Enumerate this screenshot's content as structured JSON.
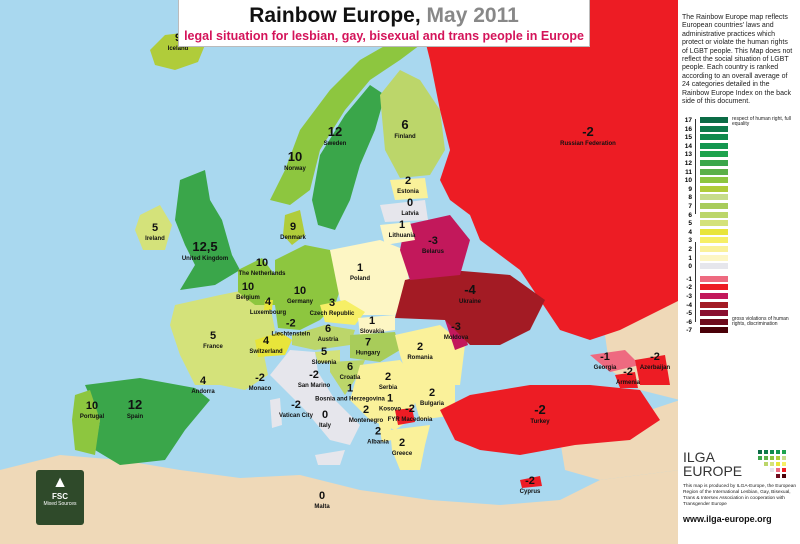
{
  "header": {
    "title": "Rainbow Europe",
    "date": "May 2011",
    "subtitle": "legal situation for lesbian, gay, bisexual and trans people in Europe"
  },
  "description": "The Rainbow Europe map reflects European countries' laws and administrative practices which protect or violate the human rights of LGBT people. This Map does not reflect the social situation of LGBT people. Each country is ranked according to an overall average of 24 categories detailed in the Rainbow Europe Index on the back side of this document.",
  "legend": {
    "top_note": "respect of human right, full equality",
    "bottom_note": "gross violations of human rights, discrimination",
    "scale": [
      {
        "v": "17",
        "c": "#0b6b45"
      },
      {
        "v": "16",
        "c": "#0d7a4a"
      },
      {
        "v": "15",
        "c": "#108a4d"
      },
      {
        "v": "14",
        "c": "#14964f"
      },
      {
        "v": "13",
        "c": "#1ea34d"
      },
      {
        "v": "12",
        "c": "#3aa64a"
      },
      {
        "v": "11",
        "c": "#5bb047"
      },
      {
        "v": "10",
        "c": "#8dc63f"
      },
      {
        "v": "9",
        "c": "#b0cc3a"
      },
      {
        "v": "8",
        "c": "#c7dc8a"
      },
      {
        "v": "7",
        "c": "#a8cc5a"
      },
      {
        "v": "6",
        "c": "#bcd66a"
      },
      {
        "v": "5",
        "c": "#d4e27a"
      },
      {
        "v": "4",
        "c": "#e8e53a"
      },
      {
        "v": "3",
        "c": "#f6ef66"
      },
      {
        "v": "2",
        "c": "#faf19a"
      },
      {
        "v": "1",
        "c": "#fdf6c4"
      },
      {
        "v": "0",
        "c": "#e6e6ec"
      },
      {
        "v": "-1",
        "c": "#ee6a80"
      },
      {
        "v": "-2",
        "c": "#ed1c24"
      },
      {
        "v": "-3",
        "c": "#c2185b"
      },
      {
        "v": "-4",
        "c": "#a31b24"
      },
      {
        "v": "-5",
        "c": "#8a0f30"
      },
      {
        "v": "-6",
        "c": "#6e0a1c"
      },
      {
        "v": "-7",
        "c": "#4a0008"
      }
    ]
  },
  "colors": {
    "sea": "#a9d8ef",
    "non_europe_land": "#efd9b8",
    "title_accent": "#d4145a"
  },
  "countries": [
    {
      "name": "Iceland",
      "score": "9"
    },
    {
      "name": "Ireland",
      "score": "5"
    },
    {
      "name": "United Kingdom",
      "score": "12,5"
    },
    {
      "name": "Portugal",
      "score": "10"
    },
    {
      "name": "Spain",
      "score": "12"
    },
    {
      "name": "France",
      "score": "5"
    },
    {
      "name": "Andorra",
      "score": "4"
    },
    {
      "name": "Belgium",
      "score": "10"
    },
    {
      "name": "The Netherlands",
      "score": "10"
    },
    {
      "name": "Luxembourg",
      "score": "4"
    },
    {
      "name": "Germany",
      "score": "10"
    },
    {
      "name": "Switzerland",
      "score": "4"
    },
    {
      "name": "Liechtenstein",
      "score": "-2"
    },
    {
      "name": "Austria",
      "score": "6"
    },
    {
      "name": "Czech Republic",
      "score": "3"
    },
    {
      "name": "Slovakia",
      "score": "1"
    },
    {
      "name": "Hungary",
      "score": "7"
    },
    {
      "name": "Slovenia",
      "score": "5"
    },
    {
      "name": "Croatia",
      "score": "6"
    },
    {
      "name": "Italy",
      "score": "0"
    },
    {
      "name": "Monaco",
      "score": "-2"
    },
    {
      "name": "San Marino",
      "score": "-2"
    },
    {
      "name": "Vatican City",
      "score": "-2"
    },
    {
      "name": "Malta",
      "score": "0"
    },
    {
      "name": "Bosnia and Herzegovina",
      "score": "1"
    },
    {
      "name": "Serbia",
      "score": "2"
    },
    {
      "name": "Montenegro",
      "score": "2"
    },
    {
      "name": "Kosovo",
      "score": "1"
    },
    {
      "name": "Albania",
      "score": "2"
    },
    {
      "name": "FYR Macedonia",
      "score": "-2"
    },
    {
      "name": "Greece",
      "score": "2"
    },
    {
      "name": "Bulgaria",
      "score": "2"
    },
    {
      "name": "Romania",
      "score": "2"
    },
    {
      "name": "Moldova",
      "score": "-3"
    },
    {
      "name": "Ukraine",
      "score": "-4"
    },
    {
      "name": "Belarus",
      "score": "-3"
    },
    {
      "name": "Poland",
      "score": "1"
    },
    {
      "name": "Lithuania",
      "score": "1"
    },
    {
      "name": "Latvia",
      "score": "0"
    },
    {
      "name": "Estonia",
      "score": "2"
    },
    {
      "name": "Finland",
      "score": "6"
    },
    {
      "name": "Sweden",
      "score": "12"
    },
    {
      "name": "Norway",
      "score": "10"
    },
    {
      "name": "Denmark",
      "score": "9"
    },
    {
      "name": "Russian Federation",
      "score": "-2"
    },
    {
      "name": "Georgia",
      "score": "-1"
    },
    {
      "name": "Armenia",
      "score": "-2"
    },
    {
      "name": "Azerbaijan",
      "score": "-2"
    },
    {
      "name": "Turkey",
      "score": "-2"
    },
    {
      "name": "Cyprus",
      "score": "-2"
    }
  ],
  "logos": {
    "ilga": "ILGA EUROPE",
    "fsc": "FSC",
    "fsc_sub": "Mixed Sources"
  },
  "footer": {
    "production": "This map is produced by ILGA-Europe, the European Region of the International Lesbian, Gay, Bisexual, Trans & Intersex Association in cooperation with Transgender Europe",
    "url": "www.ilga-europe.org"
  }
}
